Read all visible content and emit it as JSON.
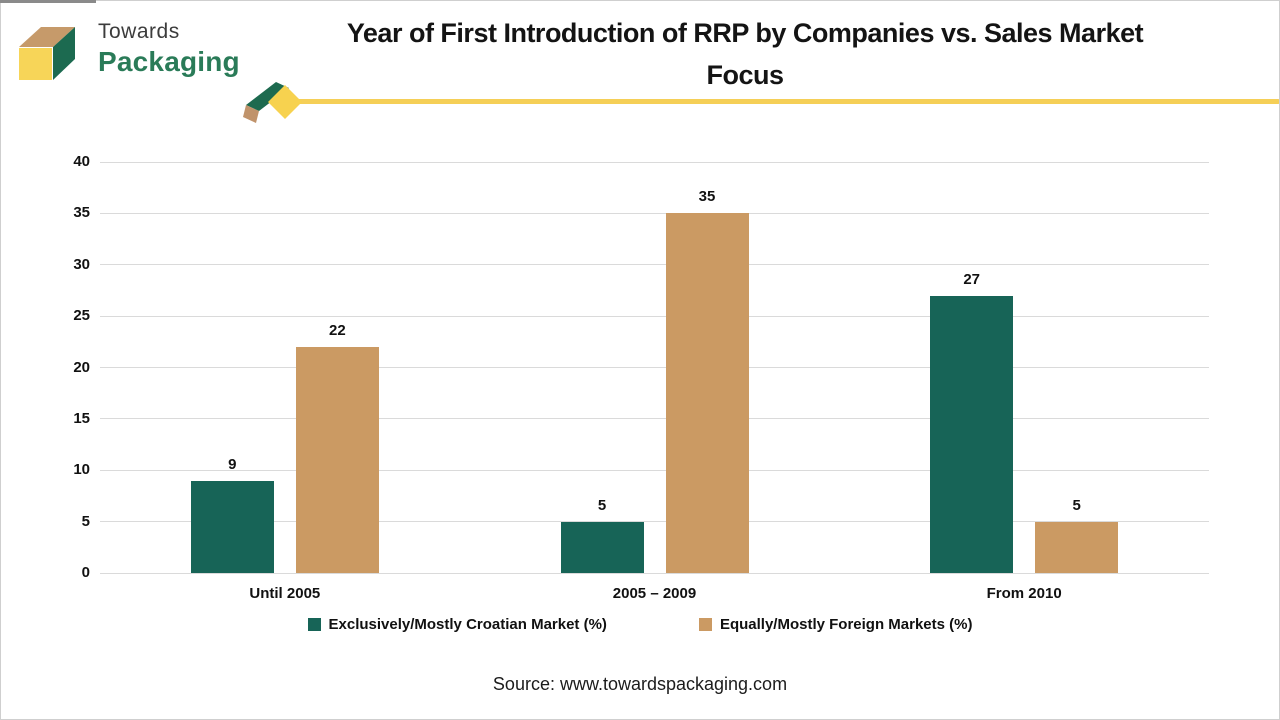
{
  "logo": {
    "line1": "Towards",
    "line2": "Packaging"
  },
  "title": {
    "line1": "Year of First Introduction of RRP by Companies vs. Sales Market",
    "line2": "Focus"
  },
  "chart_data": {
    "type": "bar",
    "title": "Year of First Introduction of RRP by Companies vs. Sales Market Focus",
    "categories": [
      "Until 2005",
      "2005 – 2009",
      "From 2010"
    ],
    "series": [
      {
        "name": "Exclusively/Mostly Croatian Market (%)",
        "color": "#176457",
        "values": [
          9,
          5,
          27
        ]
      },
      {
        "name": "Equally/Mostly Foreign Markets (%)",
        "color": "#cb9a63",
        "values": [
          22,
          35,
          5
        ]
      }
    ],
    "ylim": [
      0,
      40
    ],
    "ytick_step": 5,
    "grid": true,
    "legend_position": "bottom",
    "data_labels": true,
    "gridline_color": "#dadada"
  },
  "source": {
    "text": "Source: www.towardspackaging.com"
  },
  "colors": {
    "accent_yellow": "#f5cf57",
    "logo_green": "#2a7b58",
    "cube_tan": "#c69a6a",
    "cube_green": "#1c6a50",
    "cube_yellow": "#f7d558"
  }
}
